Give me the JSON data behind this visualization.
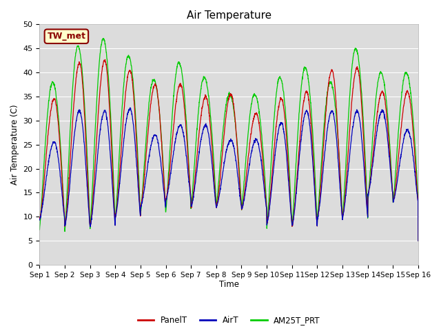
{
  "title": "Air Temperature",
  "ylabel": "Air Temperature (C)",
  "xlabel": "Time",
  "ylim": [
    0,
    50
  ],
  "xlim": [
    0,
    15
  ],
  "bg_color": "#dcdcdc",
  "fig_bg_color": "#ffffff",
  "annotation_text": "TW_met",
  "annotation_bg": "#ffffcc",
  "annotation_edge": "#8b0000",
  "legend_labels": [
    "PanelT",
    "AirT",
    "AM25T_PRT"
  ],
  "line_colors": [
    "#cc0000",
    "#0000bb",
    "#00cc00"
  ],
  "xtick_labels": [
    "Sep 1",
    "Sep 2",
    "Sep 3",
    "Sep 4",
    "Sep 5",
    "Sep 6",
    "Sep 7",
    "Sep 8",
    "Sep 9",
    "Sep 10",
    "Sep 11",
    "Sep 12",
    "Sep 13",
    "Sep 14",
    "Sep 15",
    "Sep 16"
  ],
  "xtick_positions": [
    0,
    1,
    2,
    3,
    4,
    5,
    6,
    7,
    8,
    9,
    10,
    11,
    12,
    13,
    14,
    15
  ],
  "ytick_vals": [
    0,
    5,
    10,
    15,
    20,
    25,
    30,
    35,
    40,
    45,
    50
  ],
  "ytick_labels": [
    "0",
    "5",
    "10",
    "15",
    "20",
    "25",
    "30",
    "35",
    "40",
    "45",
    "50"
  ]
}
